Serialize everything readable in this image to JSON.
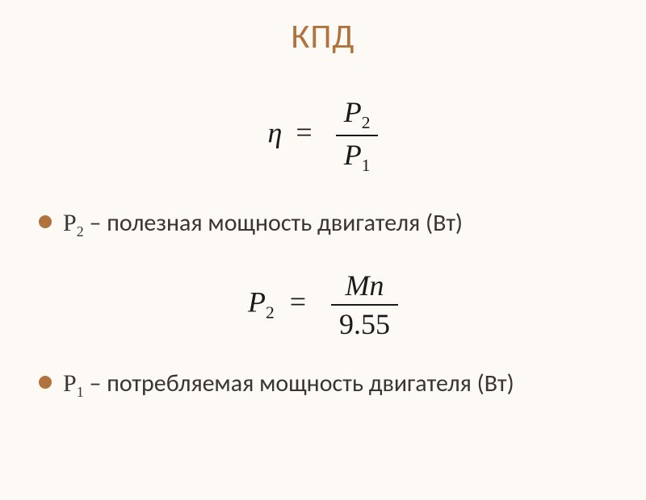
{
  "title": "КПД",
  "formula1": {
    "lhs_var": "η",
    "eq": "=",
    "numerator_var": "P",
    "numerator_sub": "2",
    "denominator_var": "P",
    "denominator_sub": "1"
  },
  "bullets": [
    {
      "var": "P",
      "sub": "2",
      "dash": " – ",
      "text": "полезная мощность двигателя (Вт)"
    },
    {
      "var": "P",
      "sub": "1",
      "dash": " – ",
      "text": "потребляемая мощность двигателя (Вт)"
    }
  ],
  "formula2": {
    "lhs_var": "P",
    "lhs_sub": "2",
    "eq": "=",
    "numerator": "Mn",
    "denominator": "9.55"
  },
  "colors": {
    "background": "#fdfaf5",
    "accent": "#b0733e",
    "text": "#3a3530",
    "formula": "#1a1a1a"
  }
}
